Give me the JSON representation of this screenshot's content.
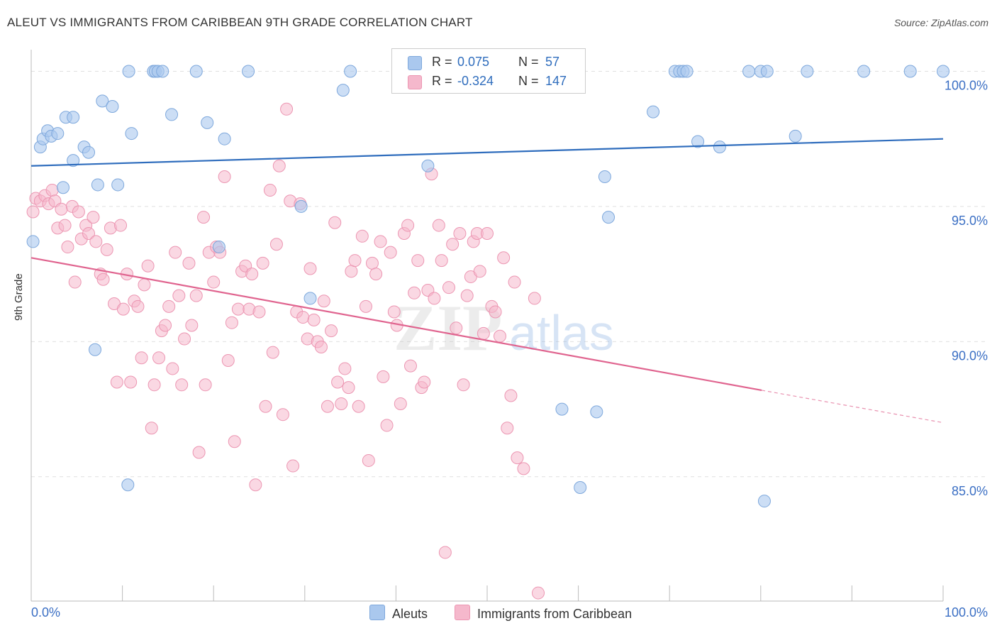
{
  "title": "ALEUT VS IMMIGRANTS FROM CARIBBEAN 9TH GRADE CORRELATION CHART",
  "source": "Source: ZipAtlas.com",
  "colors": {
    "aleuts_fill": "#aac8ee",
    "aleuts_stroke": "#7ea8dc",
    "aleuts_line": "#2f6dbd",
    "caribbean_fill": "#f5b8cc",
    "caribbean_stroke": "#ec96b2",
    "caribbean_line": "#e0648f",
    "axis_text": "#3b6fc4",
    "grid": "#e0e0e0"
  },
  "stats": {
    "aleuts": {
      "r_label": "R =",
      "r_value": "0.075",
      "n_label": "N =",
      "n_value": "57"
    },
    "caribbean": {
      "r_label": "R =",
      "r_value": "-0.324",
      "n_label": "N =",
      "n_value": "147"
    }
  },
  "legend": {
    "aleuts": "Aleuts",
    "caribbean": "Immigrants from Caribbean"
  },
  "chart_data": {
    "type": "scatter",
    "title": "ALEUT VS IMMIGRANTS FROM CARIBBEAN 9TH GRADE CORRELATION CHART",
    "xlabel": "",
    "ylabel": "9th Grade",
    "xlim": [
      0,
      100
    ],
    "ylim": [
      80.4,
      100.8
    ],
    "x_tick_labels": {
      "left": "0.0%",
      "right": "100.0%"
    },
    "y_ticks": [
      {
        "value": 100,
        "label": "100.0%"
      },
      {
        "value": 95,
        "label": "95.0%"
      },
      {
        "value": 90,
        "label": "90.0%"
      },
      {
        "value": 85,
        "label": "85.0%"
      }
    ],
    "grid": true,
    "legend_position": "bottom",
    "watermark": "ZIPatlas",
    "series": [
      {
        "name": "Aleuts",
        "trend": {
          "x": [
            0,
            100
          ],
          "y": [
            96.5,
            97.5
          ]
        },
        "points": [
          [
            0.2,
            93.7
          ],
          [
            1,
            97.2
          ],
          [
            1.3,
            97.5
          ],
          [
            1.8,
            97.8
          ],
          [
            2.2,
            97.6
          ],
          [
            2.9,
            97.7
          ],
          [
            3.5,
            95.7
          ],
          [
            3.8,
            98.3
          ],
          [
            4.6,
            98.3
          ],
          [
            4.6,
            96.7
          ],
          [
            5.8,
            97.2
          ],
          [
            6.3,
            97.0
          ],
          [
            7,
            89.7
          ],
          [
            7.3,
            95.8
          ],
          [
            7.8,
            98.9
          ],
          [
            8.9,
            98.7
          ],
          [
            9.5,
            95.8
          ],
          [
            10.6,
            84.7
          ],
          [
            10.7,
            100
          ],
          [
            11,
            97.7
          ],
          [
            13.4,
            100
          ],
          [
            13.6,
            100
          ],
          [
            13.9,
            100
          ],
          [
            14.4,
            100
          ],
          [
            15.4,
            98.4
          ],
          [
            18.1,
            100
          ],
          [
            19.3,
            98.1
          ],
          [
            20.6,
            93.5
          ],
          [
            21.2,
            97.5
          ],
          [
            23.8,
            100
          ],
          [
            29.6,
            95
          ],
          [
            30.6,
            91.6
          ],
          [
            34.2,
            99.3
          ],
          [
            35,
            100
          ],
          [
            43.5,
            96.5
          ],
          [
            47,
            100
          ],
          [
            49.6,
            100
          ],
          [
            52.6,
            100
          ],
          [
            55.6,
            100
          ],
          [
            58.2,
            87.5
          ],
          [
            60.2,
            84.6
          ],
          [
            62,
            87.4
          ],
          [
            62.9,
            96.1
          ],
          [
            63.3,
            94.6
          ],
          [
            68.2,
            98.5
          ],
          [
            70.6,
            100
          ],
          [
            71.1,
            100
          ],
          [
            71.5,
            100
          ],
          [
            71.9,
            100
          ],
          [
            73.1,
            97.4
          ],
          [
            75.5,
            97.2
          ],
          [
            78.7,
            100
          ],
          [
            80,
            100
          ],
          [
            80.4,
            84.1
          ],
          [
            80.7,
            100
          ],
          [
            83.8,
            97.6
          ],
          [
            85.1,
            100
          ],
          [
            91.3,
            100
          ],
          [
            96.4,
            100
          ],
          [
            100,
            100
          ]
        ]
      },
      {
        "name": "Immigrants from Caribbean",
        "trend": {
          "x": [
            0,
            80.1
          ],
          "y": [
            93.1,
            88.2
          ]
        },
        "trend_dashed": {
          "x": [
            80.1,
            100
          ],
          "y": [
            88.2,
            87
          ]
        },
        "points": [
          [
            0.2,
            94.8
          ],
          [
            0.5,
            95.3
          ],
          [
            1,
            95.2
          ],
          [
            1.5,
            95.4
          ],
          [
            1.9,
            95.1
          ],
          [
            2.3,
            95.6
          ],
          [
            2.6,
            95.2
          ],
          [
            2.9,
            94.2
          ],
          [
            3.3,
            94.9
          ],
          [
            3.7,
            94.3
          ],
          [
            4,
            93.5
          ],
          [
            4.5,
            95
          ],
          [
            4.8,
            92.2
          ],
          [
            5.2,
            94.8
          ],
          [
            5.5,
            93.8
          ],
          [
            6,
            94.3
          ],
          [
            6.3,
            94
          ],
          [
            6.8,
            94.6
          ],
          [
            7.1,
            93.7
          ],
          [
            7.6,
            92.5
          ],
          [
            7.9,
            92.3
          ],
          [
            8.3,
            93.4
          ],
          [
            8.7,
            94.2
          ],
          [
            9.1,
            91.4
          ],
          [
            9.4,
            88.5
          ],
          [
            9.8,
            94.3
          ],
          [
            10.1,
            91.2
          ],
          [
            10.5,
            92.5
          ],
          [
            10.9,
            88.5
          ],
          [
            11.3,
            91.5
          ],
          [
            11.7,
            91.3
          ],
          [
            12.1,
            89.4
          ],
          [
            12.4,
            92.1
          ],
          [
            12.8,
            92.8
          ],
          [
            13.2,
            86.8
          ],
          [
            13.5,
            88.4
          ],
          [
            14,
            89.4
          ],
          [
            14.3,
            90.4
          ],
          [
            14.7,
            90.6
          ],
          [
            15.1,
            91.3
          ],
          [
            15.5,
            89
          ],
          [
            15.8,
            93.3
          ],
          [
            16.2,
            91.7
          ],
          [
            16.5,
            88.4
          ],
          [
            16.8,
            90.1
          ],
          [
            17.3,
            92.9
          ],
          [
            17.6,
            90.6
          ],
          [
            18.1,
            91.7
          ],
          [
            18.4,
            85.9
          ],
          [
            18.9,
            94.6
          ],
          [
            19.1,
            88.4
          ],
          [
            19.5,
            93.3
          ],
          [
            20,
            92.2
          ],
          [
            20.3,
            93.5
          ],
          [
            20.7,
            93.3
          ],
          [
            21.2,
            96.1
          ],
          [
            21.6,
            89.3
          ],
          [
            22,
            90.7
          ],
          [
            22.3,
            86.3
          ],
          [
            22.7,
            91.2
          ],
          [
            23.1,
            92.6
          ],
          [
            23.5,
            92.8
          ],
          [
            23.9,
            91.2
          ],
          [
            24.2,
            92.5
          ],
          [
            24.6,
            84.7
          ],
          [
            25,
            91.1
          ],
          [
            25.4,
            92.9
          ],
          [
            25.7,
            87.6
          ],
          [
            26.2,
            95.6
          ],
          [
            26.5,
            89.6
          ],
          [
            26.9,
            93.6
          ],
          [
            27.2,
            96.5
          ],
          [
            27.6,
            87.3
          ],
          [
            28,
            98.6
          ],
          [
            28.4,
            95.2
          ],
          [
            28.7,
            85.4
          ],
          [
            29.1,
            91.1
          ],
          [
            29.5,
            95.1
          ],
          [
            29.8,
            90.9
          ],
          [
            30.3,
            90.1
          ],
          [
            30.6,
            92.7
          ],
          [
            31,
            90.8
          ],
          [
            31.4,
            90
          ],
          [
            31.8,
            89.8
          ],
          [
            32.1,
            91.5
          ],
          [
            32.5,
            87.6
          ],
          [
            32.9,
            90.4
          ],
          [
            33.3,
            94.4
          ],
          [
            33.6,
            88.5
          ],
          [
            34,
            87.7
          ],
          [
            34.4,
            89
          ],
          [
            34.8,
            88.3
          ],
          [
            35.1,
            92.6
          ],
          [
            35.5,
            93
          ],
          [
            35.9,
            87.6
          ],
          [
            36.3,
            93.9
          ],
          [
            36.7,
            91.3
          ],
          [
            37,
            85.6
          ],
          [
            37.4,
            92.9
          ],
          [
            37.8,
            92.5
          ],
          [
            38.3,
            93.7
          ],
          [
            38.6,
            88.7
          ],
          [
            39,
            86.9
          ],
          [
            39.4,
            93.3
          ],
          [
            39.8,
            91.1
          ],
          [
            40.1,
            90.6
          ],
          [
            40.5,
            87.7
          ],
          [
            40.9,
            94
          ],
          [
            41.3,
            94.3
          ],
          [
            41.6,
            89.1
          ],
          [
            42,
            91.8
          ],
          [
            42.4,
            93
          ],
          [
            42.8,
            88.3
          ],
          [
            43.1,
            88.5
          ],
          [
            43.5,
            91.9
          ],
          [
            43.9,
            96.2
          ],
          [
            44.2,
            91.6
          ],
          [
            44.7,
            94.3
          ],
          [
            45,
            93
          ],
          [
            45.4,
            82.2
          ],
          [
            45.8,
            92
          ],
          [
            46.2,
            93.6
          ],
          [
            46.6,
            90.5
          ],
          [
            47,
            94
          ],
          [
            47.4,
            88.4
          ],
          [
            47.8,
            91.7
          ],
          [
            48.2,
            92.4
          ],
          [
            48.5,
            93.7
          ],
          [
            48.9,
            94
          ],
          [
            49.2,
            92.6
          ],
          [
            49.6,
            90.3
          ],
          [
            50,
            94
          ],
          [
            50.5,
            91.3
          ],
          [
            50.9,
            91.1
          ],
          [
            51.4,
            90.2
          ],
          [
            51.8,
            93.1
          ],
          [
            52.2,
            86.8
          ],
          [
            52.6,
            88
          ],
          [
            53,
            92.2
          ],
          [
            53.3,
            85.7
          ],
          [
            54,
            85.3
          ],
          [
            55.2,
            91.6
          ],
          [
            55.6,
            80.7
          ]
        ]
      }
    ]
  }
}
